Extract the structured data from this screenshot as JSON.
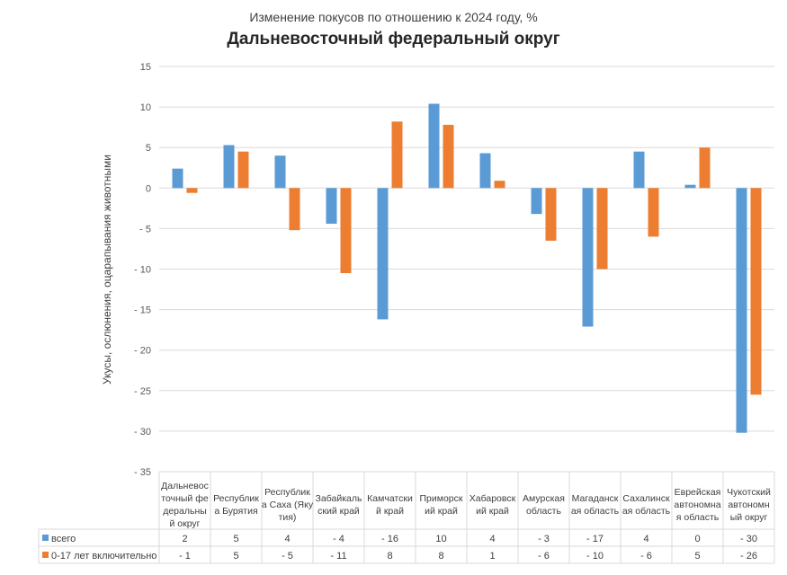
{
  "chart_data": {
    "type": "bar",
    "title": "Изменение покусов по отношению к 2024 году, %",
    "subtitle": "Дальневосточный федеральный округ",
    "xlabel": "",
    "ylabel": "Укусы, ослюнения, оцарапывания животными",
    "ylim": [
      -35,
      15
    ],
    "yticks": [
      15,
      10,
      5,
      0,
      -5,
      -10,
      -15,
      -20,
      -25,
      -30,
      -35
    ],
    "ytick_labels": [
      "15",
      "10",
      "5",
      "0",
      "- 5",
      "- 10",
      "- 15",
      "- 20",
      "- 25",
      "- 30",
      "- 35"
    ],
    "grid": true,
    "legend": "data-table",
    "categories": [
      [
        "Дальневос",
        "точный фе",
        "деральны",
        "й округ"
      ],
      [
        "Республик",
        "а Бурятия"
      ],
      [
        "Республик",
        "а Саха (Яку",
        "тия)"
      ],
      [
        "Забайкаль",
        "ский край"
      ],
      [
        "Камчатски",
        "й край"
      ],
      [
        "Приморск",
        "ий край"
      ],
      [
        "Хабаровск",
        "ий край"
      ],
      [
        "Амурская",
        "область"
      ],
      [
        "Магаданск",
        "ая область"
      ],
      [
        "Сахалинск",
        "ая область"
      ],
      [
        "Еврейская",
        "автономна",
        "я область"
      ],
      [
        "Чукотский",
        "автономн",
        "ый округ"
      ]
    ],
    "series": [
      {
        "name": "всего",
        "color": "#5B9BD5",
        "values": [
          2.4,
          5.3,
          4.0,
          -4.4,
          -16.2,
          10.4,
          4.3,
          -3.2,
          -17.1,
          4.5,
          0.4,
          -30.2
        ],
        "table_labels": [
          "2",
          "5",
          "4",
          "- 4",
          "- 16",
          "10",
          "4",
          "- 3",
          "- 17",
          "4",
          "0",
          "- 30"
        ]
      },
      {
        "name": "0-17 лет включительно",
        "color": "#ED7D31",
        "values": [
          -0.6,
          4.5,
          -5.2,
          -10.5,
          8.2,
          7.8,
          0.9,
          -6.5,
          -10.0,
          -6.0,
          5.0,
          -25.5
        ],
        "table_labels": [
          "- 1",
          "5",
          "- 5",
          "- 11",
          "8",
          "8",
          "1",
          "- 6",
          "- 10",
          "- 6",
          "5",
          "- 26"
        ]
      }
    ]
  }
}
